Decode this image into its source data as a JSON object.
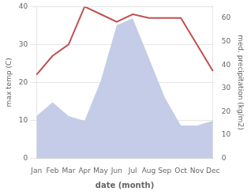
{
  "chart_data": {
    "type": "line",
    "xlabel": "date (month)",
    "ylabel": "max temp (C)",
    "y2label": "med. precipitation (kg/m2)",
    "categories": [
      "Jan",
      "Feb",
      "Mar",
      "Apr",
      "May",
      "Jun",
      "Jul",
      "Aug",
      "Sep",
      "Oct",
      "Nov",
      "Dec"
    ],
    "series": [
      {
        "type": "area",
        "axis": "y2",
        "color": "#c5cce8",
        "values": [
          18,
          24,
          18,
          16,
          33,
          57,
          60,
          43,
          26,
          14,
          14,
          16
        ]
      },
      {
        "type": "line",
        "color": "#c0504d",
        "values": [
          22,
          27,
          30,
          40,
          38,
          36,
          38,
          37,
          37,
          37,
          30,
          23
        ]
      }
    ],
    "ylim": [
      0,
      40
    ],
    "yticks": [
      0,
      10,
      20,
      30,
      40
    ],
    "y2lim": [
      0,
      65
    ],
    "y2ticks": [
      0,
      10,
      20,
      30,
      40,
      50,
      60
    ],
    "grid": true
  }
}
